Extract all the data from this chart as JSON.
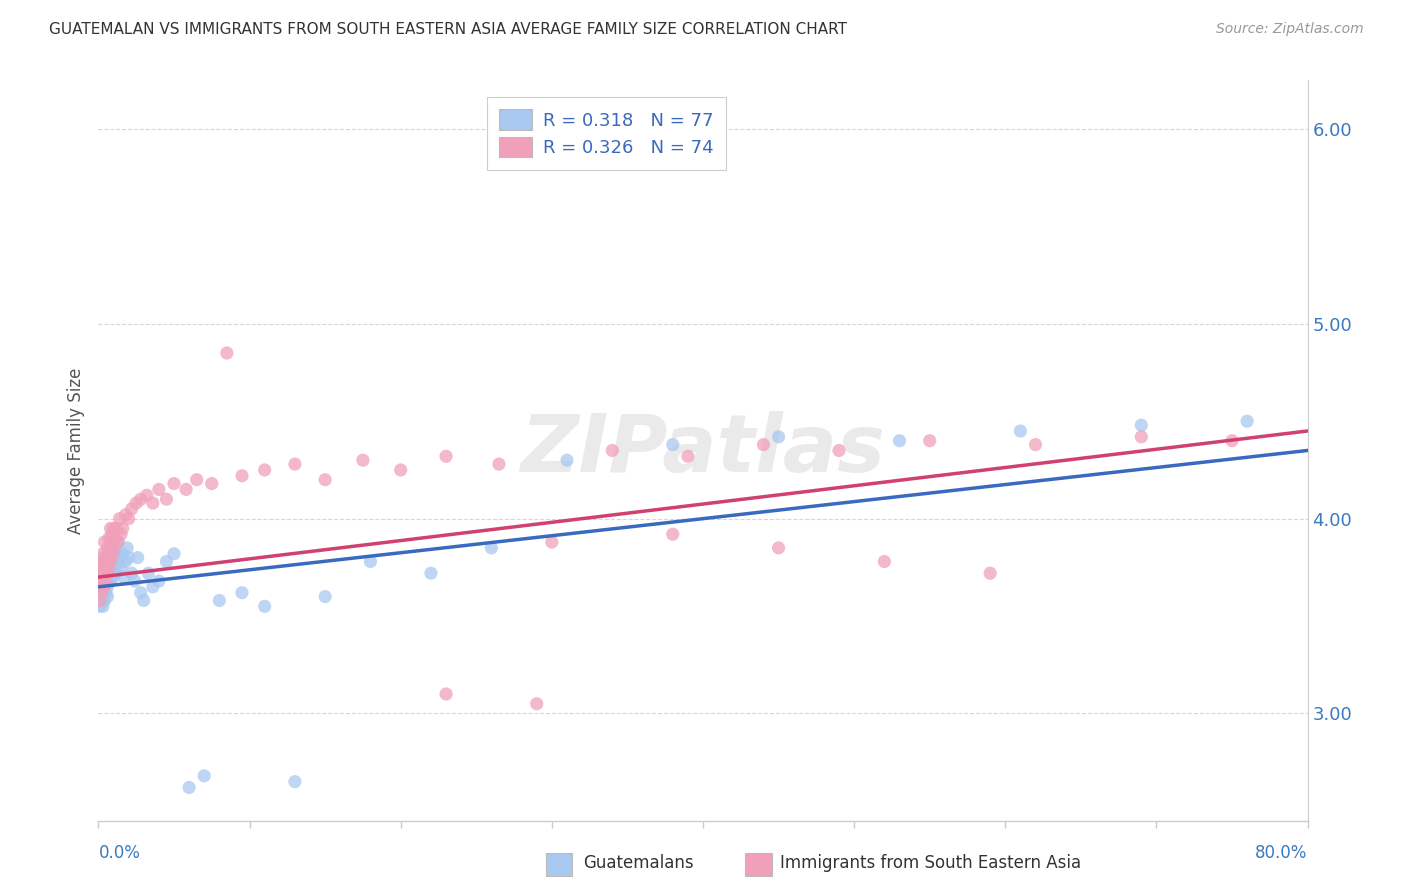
{
  "title": "GUATEMALAN VS IMMIGRANTS FROM SOUTH EASTERN ASIA AVERAGE FAMILY SIZE CORRELATION CHART",
  "source": "Source: ZipAtlas.com",
  "ylabel": "Average Family Size",
  "yticks": [
    3.0,
    4.0,
    5.0,
    6.0
  ],
  "xmin": 0.0,
  "xmax": 0.8,
  "ymin": 2.45,
  "ymax": 6.25,
  "color_blue": "#a8c8f0",
  "color_pink": "#f0a0b8",
  "line_blue": "#3a6abf",
  "line_pink": "#d04070",
  "watermark": "ZIPatlas",
  "guat_x": [
    0.001,
    0.001,
    0.001,
    0.002,
    0.002,
    0.002,
    0.002,
    0.002,
    0.003,
    0.003,
    0.003,
    0.003,
    0.003,
    0.004,
    0.004,
    0.004,
    0.004,
    0.005,
    0.005,
    0.005,
    0.005,
    0.006,
    0.006,
    0.006,
    0.006,
    0.006,
    0.007,
    0.007,
    0.007,
    0.008,
    0.008,
    0.008,
    0.009,
    0.009,
    0.01,
    0.01,
    0.01,
    0.011,
    0.011,
    0.012,
    0.012,
    0.013,
    0.013,
    0.014,
    0.015,
    0.016,
    0.017,
    0.018,
    0.019,
    0.02,
    0.022,
    0.024,
    0.026,
    0.028,
    0.03,
    0.033,
    0.036,
    0.04,
    0.045,
    0.05,
    0.06,
    0.07,
    0.08,
    0.095,
    0.11,
    0.13,
    0.15,
    0.18,
    0.22,
    0.26,
    0.31,
    0.38,
    0.45,
    0.53,
    0.61,
    0.69,
    0.76
  ],
  "guat_y": [
    3.7,
    3.55,
    3.6,
    3.65,
    3.72,
    3.68,
    3.58,
    3.75,
    3.62,
    3.68,
    3.74,
    3.55,
    3.8,
    3.7,
    3.65,
    3.75,
    3.58,
    3.72,
    3.68,
    3.78,
    3.62,
    3.65,
    3.75,
    3.8,
    3.7,
    3.6,
    3.72,
    3.82,
    3.68,
    3.75,
    3.82,
    3.68,
    3.78,
    3.72,
    3.8,
    3.7,
    3.88,
    3.75,
    3.85,
    3.82,
    3.72,
    3.78,
    3.88,
    3.8,
    3.75,
    3.82,
    3.7,
    3.78,
    3.85,
    3.8,
    3.72,
    3.68,
    3.8,
    3.62,
    3.58,
    3.72,
    3.65,
    3.68,
    3.78,
    3.82,
    2.62,
    2.68,
    3.58,
    3.62,
    3.55,
    2.65,
    3.6,
    3.78,
    3.72,
    3.85,
    4.3,
    4.38,
    4.42,
    4.4,
    4.45,
    4.48,
    4.5
  ],
  "sea_x": [
    0.001,
    0.001,
    0.001,
    0.002,
    0.002,
    0.002,
    0.002,
    0.003,
    0.003,
    0.003,
    0.003,
    0.004,
    0.004,
    0.004,
    0.005,
    0.005,
    0.005,
    0.006,
    0.006,
    0.006,
    0.007,
    0.007,
    0.007,
    0.008,
    0.008,
    0.008,
    0.009,
    0.009,
    0.01,
    0.01,
    0.01,
    0.011,
    0.012,
    0.013,
    0.014,
    0.015,
    0.016,
    0.018,
    0.02,
    0.022,
    0.025,
    0.028,
    0.032,
    0.036,
    0.04,
    0.045,
    0.05,
    0.058,
    0.065,
    0.075,
    0.085,
    0.095,
    0.11,
    0.13,
    0.15,
    0.175,
    0.2,
    0.23,
    0.265,
    0.3,
    0.34,
    0.39,
    0.44,
    0.49,
    0.55,
    0.62,
    0.69,
    0.75,
    0.23,
    0.29,
    0.38,
    0.45,
    0.52,
    0.59
  ],
  "sea_y": [
    3.65,
    3.72,
    3.58,
    3.7,
    3.78,
    3.62,
    3.68,
    3.75,
    3.82,
    3.68,
    3.72,
    3.78,
    3.65,
    3.88,
    3.72,
    3.8,
    3.68,
    3.78,
    3.85,
    3.72,
    3.82,
    3.9,
    3.75,
    3.88,
    3.78,
    3.95,
    3.85,
    3.92,
    3.88,
    3.82,
    3.95,
    3.9,
    3.95,
    3.88,
    4.0,
    3.92,
    3.95,
    4.02,
    4.0,
    4.05,
    4.08,
    4.1,
    4.12,
    4.08,
    4.15,
    4.1,
    4.18,
    4.15,
    4.2,
    4.18,
    4.85,
    4.22,
    4.25,
    4.28,
    4.2,
    4.3,
    4.25,
    4.32,
    4.28,
    3.88,
    4.35,
    4.32,
    4.38,
    4.35,
    4.4,
    4.38,
    4.42,
    4.4,
    3.1,
    3.05,
    3.92,
    3.85,
    3.78,
    3.72
  ]
}
